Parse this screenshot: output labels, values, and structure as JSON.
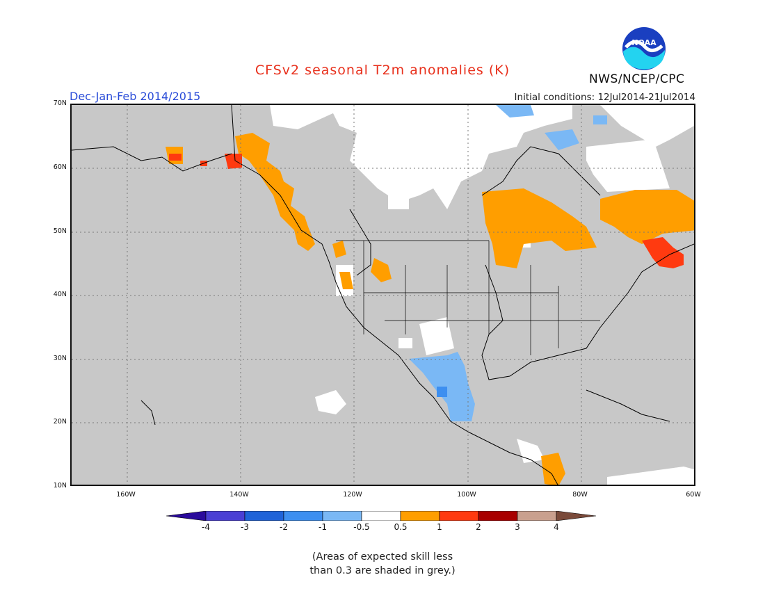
{
  "title": "CFSv2 seasonal T2m anomalies (K)",
  "season": "Dec-Jan-Feb 2014/2015",
  "initial_conditions": "Initial conditions: 12Jul2014-21Jul2014",
  "agency": "NWS/NCEP/CPC",
  "logo_text": "NOAA",
  "lat_labels": [
    "70N",
    "60N",
    "50N",
    "40N",
    "30N",
    "20N",
    "10N"
  ],
  "lon_labels": [
    "160W",
    "140W",
    "120W",
    "100W",
    "80W",
    "60W"
  ],
  "colorbar": {
    "ticks": [
      "-4",
      "-3",
      "-2",
      "-1",
      "-0.5",
      "0.5",
      "1",
      "2",
      "3",
      "4"
    ],
    "colors": [
      "#2a0a9c",
      "#4a3fd4",
      "#1f63d8",
      "#3d8ff0",
      "#7ab8f5",
      "#ffffff",
      "#ff9e00",
      "#ff3a10",
      "#a80000",
      "#c9a08e",
      "#7a4a3a"
    ]
  },
  "note": {
    "line1": "(Areas of expected skill less",
    "line2": "than 0.3 are shaded in grey.)"
  },
  "colors": {
    "no_skill": "#c8c8c8",
    "near_normal": "#ffffff",
    "warm_0_5": "#ff9e00",
    "warm_1": "#ff3a10",
    "cool_0_5": "#7ab8f5",
    "cool_1": "#3d8ff0"
  }
}
